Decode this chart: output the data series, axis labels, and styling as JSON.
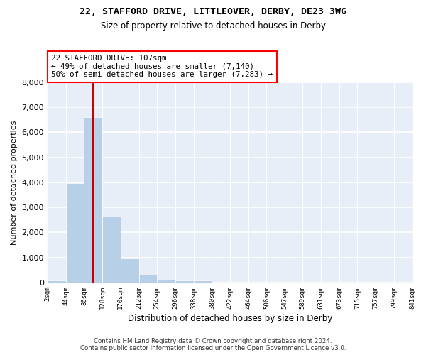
{
  "title_line1": "22, STAFFORD DRIVE, LITTLEOVER, DERBY, DE23 3WG",
  "title_line2": "Size of property relative to detached houses in Derby",
  "xlabel": "Distribution of detached houses by size in Derby",
  "ylabel": "Number of detached properties",
  "footnote": "Contains HM Land Registry data © Crown copyright and database right 2024.\nContains public sector information licensed under the Open Government Licence v3.0.",
  "annotation_title": "22 STAFFORD DRIVE: 107sqm",
  "annotation_line2": "← 49% of detached houses are smaller (7,140)",
  "annotation_line3": "50% of semi-detached houses are larger (7,283) →",
  "property_size_sqm": 107,
  "bar_color": "#b8cfe8",
  "vline_color": "#cc0000",
  "background_color": "#e8eef8",
  "grid_color": "#ffffff",
  "bin_edges": [
    2,
    44,
    86,
    128,
    170,
    212,
    254,
    296,
    338,
    380,
    422,
    464,
    506,
    547,
    589,
    631,
    673,
    715,
    757,
    799,
    841
  ],
  "bin_labels": [
    "2sqm",
    "44sqm",
    "86sqm",
    "128sqm",
    "170sqm",
    "212sqm",
    "254sqm",
    "296sqm",
    "338sqm",
    "380sqm",
    "422sqm",
    "464sqm",
    "506sqm",
    "547sqm",
    "589sqm",
    "631sqm",
    "673sqm",
    "715sqm",
    "757sqm",
    "799sqm",
    "841sqm"
  ],
  "bar_heights": [
    70,
    3980,
    6620,
    2630,
    950,
    300,
    110,
    90,
    70,
    0,
    0,
    0,
    0,
    0,
    0,
    0,
    0,
    0,
    0,
    0
  ],
  "ylim": [
    0,
    8000
  ],
  "yticks": [
    0,
    1000,
    2000,
    3000,
    4000,
    5000,
    6000,
    7000,
    8000
  ]
}
